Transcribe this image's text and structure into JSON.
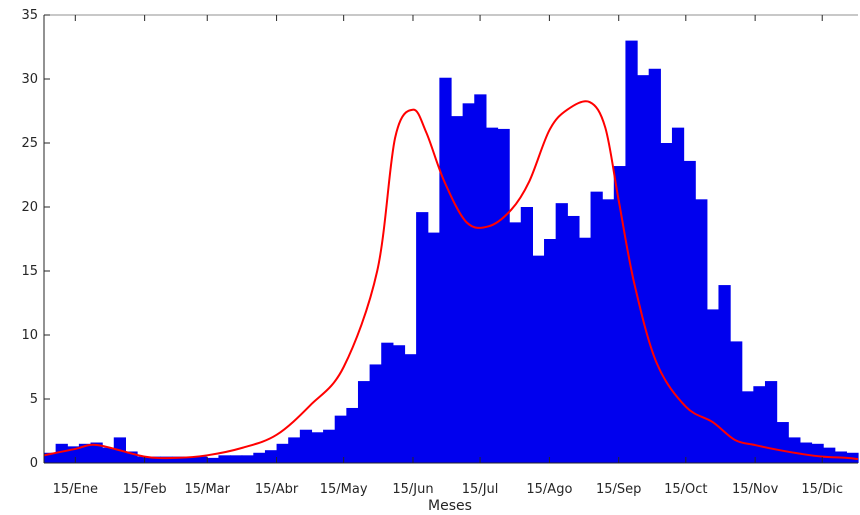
{
  "chart_data": {
    "type": "bar",
    "xlabel": "Meses",
    "ylabel": "",
    "ylim": [
      0,
      35
    ],
    "yticks": [
      0,
      5,
      10,
      15,
      20,
      25,
      30,
      35
    ],
    "xticks": [
      {
        "label": "15/Ene",
        "day": 15
      },
      {
        "label": "15/Feb",
        "day": 46
      },
      {
        "label": "15/Mar",
        "day": 74
      },
      {
        "label": "15/Abr",
        "day": 105
      },
      {
        "label": "15/May",
        "day": 135
      },
      {
        "label": "15/Jun",
        "day": 166
      },
      {
        "label": "15/Jul",
        "day": 196
      },
      {
        "label": "15/Ago",
        "day": 227
      },
      {
        "label": "15/Sep",
        "day": 258
      },
      {
        "label": "15/Oct",
        "day": 288
      },
      {
        "label": "15/Nov",
        "day": 319
      },
      {
        "label": "15/Dic",
        "day": 349
      }
    ],
    "xlim": [
      1,
      365
    ],
    "grid": false,
    "bin_width_days": 5.2,
    "histogram_values": [
      0.8,
      1.5,
      1.3,
      1.5,
      1.6,
      1.2,
      2.0,
      0.9,
      0.5,
      0.5,
      0.5,
      0.5,
      0.5,
      0.5,
      0.4,
      0.6,
      0.6,
      0.6,
      0.8,
      1.0,
      1.5,
      2.0,
      2.6,
      2.4,
      2.6,
      3.7,
      4.3,
      6.4,
      7.7,
      9.4,
      9.2,
      8.5,
      19.6,
      18.0,
      30.1,
      27.1,
      28.1,
      28.8,
      26.2,
      26.1,
      18.8,
      20.0,
      16.2,
      17.5,
      20.3,
      19.3,
      17.6,
      21.2,
      20.6,
      23.2,
      33.0,
      30.3,
      30.8,
      25.0,
      26.2,
      23.6,
      20.6,
      12.0,
      13.9,
      9.5,
      5.6,
      6.0,
      6.4,
      3.2,
      2.0,
      1.6,
      1.5,
      1.2,
      0.9,
      0.8
    ],
    "series": [
      {
        "kind": "smooth-curve",
        "color": "#ff0000",
        "x": [
          1,
          15,
          25,
          46,
          60,
          74,
          90,
          105,
          120,
          135,
          150,
          158,
          166,
          172,
          180,
          190,
          200,
          210,
          218,
          227,
          235,
          245,
          252,
          258,
          265,
          275,
          288,
          300,
          310,
          319,
          330,
          340,
          349,
          360,
          365
        ],
        "y": [
          0.6,
          1.1,
          1.4,
          0.5,
          0.4,
          0.6,
          1.2,
          2.2,
          4.5,
          7.5,
          15.0,
          25.4,
          27.6,
          25.8,
          22.0,
          18.8,
          18.5,
          19.8,
          22.0,
          26.0,
          27.6,
          28.2,
          26.2,
          20.5,
          14.0,
          7.8,
          4.4,
          3.2,
          1.8,
          1.4,
          1.0,
          0.7,
          0.5,
          0.4,
          0.3
        ]
      }
    ],
    "colors": {
      "bars": "#0000ee",
      "curve": "#ff0000",
      "axis": "#262626"
    }
  }
}
